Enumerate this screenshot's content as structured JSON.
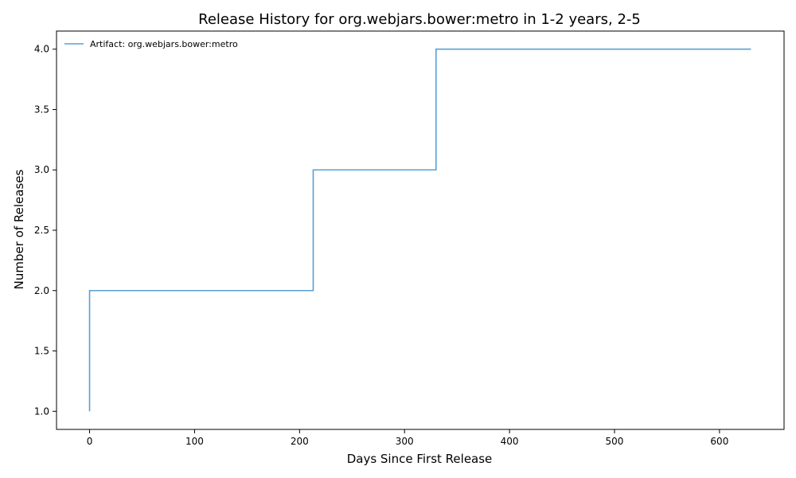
{
  "chart_data": {
    "type": "line",
    "title": "Release History for org.webjars.bower:metro in 1-2 years, 2-5",
    "xlabel": "Days Since First Release",
    "ylabel": "Number of Releases",
    "xlim": [
      -31.5,
      661.5
    ],
    "ylim": [
      0.85,
      4.15
    ],
    "xticks": [
      0,
      100,
      200,
      300,
      400,
      500,
      600
    ],
    "xtick_labels": [
      "0",
      "100",
      "200",
      "300",
      "400",
      "500",
      "600"
    ],
    "yticks": [
      1.0,
      1.5,
      2.0,
      2.5,
      3.0,
      3.5,
      4.0
    ],
    "ytick_labels": [
      "1.0",
      "1.5",
      "2.0",
      "2.5",
      "3.0",
      "3.5",
      "4.0"
    ],
    "grid": false,
    "legend_position": "top-left",
    "step": "post",
    "series": [
      {
        "name": "Artifact: org.webjars.bower:metro",
        "color": "#5a9fd4",
        "x": [
          0,
          0,
          213,
          330,
          630
        ],
        "y": [
          1,
          2,
          3,
          4,
          4
        ]
      }
    ]
  }
}
